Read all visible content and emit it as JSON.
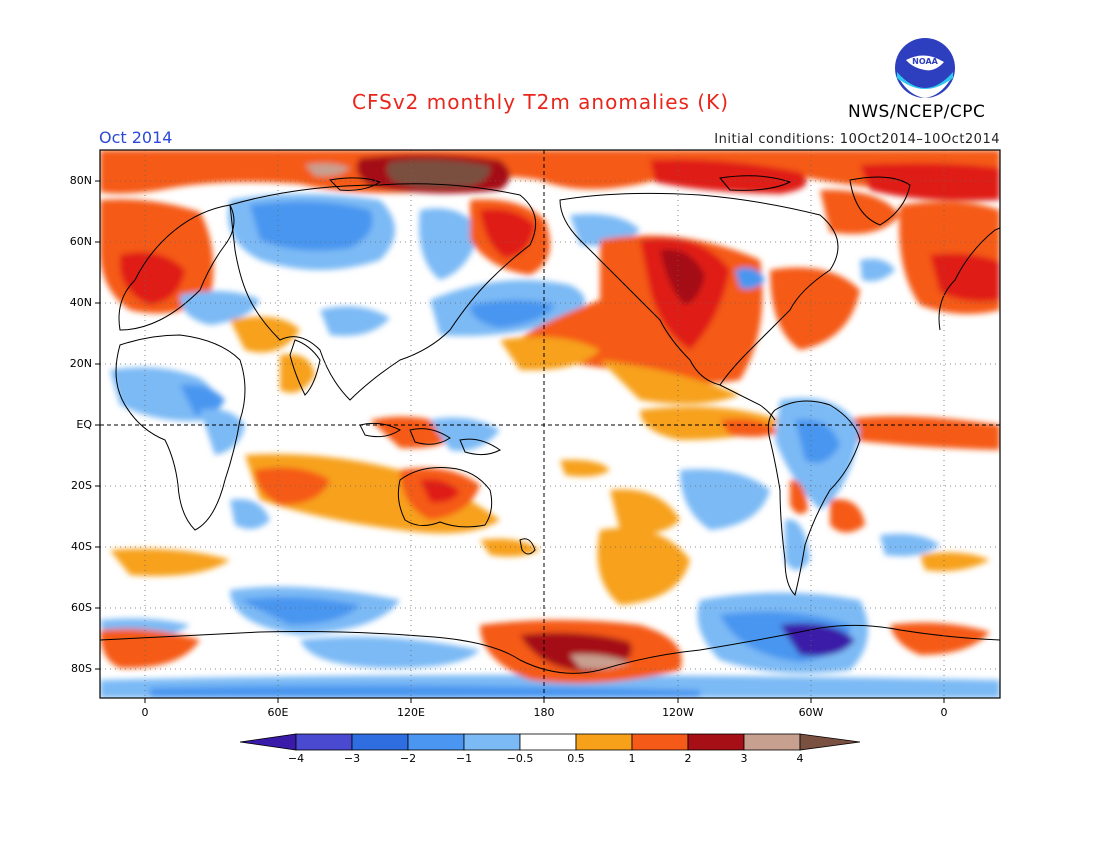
{
  "title": "CFSv2 monthly T2m anomalies (K)",
  "month": "Oct 2014",
  "initial_conditions": "Initial conditions: 10Oct2014–10Oct2014",
  "agency": "NWS/NCEP/CPC",
  "logo": {
    "text": "NOAA",
    "icon": "noaa-logo-icon"
  },
  "map": {
    "lat_labels": [
      "80N",
      "60N",
      "40N",
      "20N",
      "EQ",
      "20S",
      "40S",
      "60S",
      "80S"
    ],
    "lon_labels": [
      "0",
      "60E",
      "120E",
      "180",
      "120W",
      "60W",
      "0"
    ]
  },
  "colorbar": {
    "labels": [
      "−4",
      "−3",
      "−2",
      "−1",
      "−0.5",
      "0.5",
      "1",
      "2",
      "3",
      "4"
    ],
    "colors": [
      "#3a1aa8",
      "#4a4ad0",
      "#2f6ee0",
      "#4a96f0",
      "#7cbaf5",
      "#ffffff",
      "#f7a11a",
      "#f55a18",
      "#e01e12",
      "#a50f15",
      "#c8a090",
      "#7a5040"
    ]
  },
  "colors": {
    "title": "#e8261c",
    "month": "#2a49d6"
  }
}
